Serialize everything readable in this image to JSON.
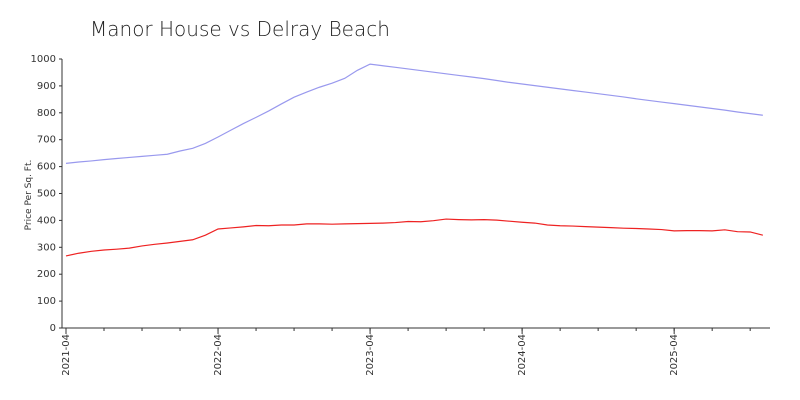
{
  "chart_data": {
    "type": "line",
    "title": "Manor House vs Delray Beach",
    "y_label": "Price Per Sq. Ft.",
    "x": [
      "2021-04",
      "2021-05",
      "2021-06",
      "2021-07",
      "2021-08",
      "2021-09",
      "2021-10",
      "2021-11",
      "2021-12",
      "2022-01",
      "2022-02",
      "2022-03",
      "2022-04",
      "2022-05",
      "2022-06",
      "2022-07",
      "2022-08",
      "2022-09",
      "2022-10",
      "2022-11",
      "2022-12",
      "2023-01",
      "2023-02",
      "2023-03",
      "2023-04",
      "2023-05",
      "2023-06",
      "2023-07",
      "2023-08",
      "2023-09",
      "2023-10",
      "2023-11",
      "2023-12",
      "2024-01",
      "2024-02",
      "2024-03",
      "2024-04",
      "2024-05",
      "2024-06",
      "2024-07",
      "2024-08",
      "2024-09",
      "2024-10",
      "2024-11",
      "2024-12",
      "2025-01",
      "2025-02",
      "2025-03",
      "2025-04",
      "2025-05",
      "2025-06",
      "2025-07",
      "2025-08",
      "2025-09",
      "2025-10",
      "2025-11"
    ],
    "series": [
      {
        "color": "#9999ee",
        "values": [
          612,
          617,
          621,
          626,
          630,
          634,
          638,
          642,
          646,
          658,
          668,
          686,
          710,
          735,
          760,
          783,
          807,
          833,
          858,
          877,
          895,
          910,
          928,
          958,
          981,
          975,
          969,
          963,
          957,
          951,
          945,
          939,
          933,
          927,
          920,
          913,
          907,
          901,
          895,
          889,
          883,
          877,
          871,
          865,
          859,
          852,
          846,
          840,
          834,
          828,
          822,
          816,
          810,
          803,
          797,
          791
        ]
      },
      {
        "color": "#ee2222",
        "values": [
          268,
          278,
          285,
          290,
          293,
          297,
          305,
          311,
          316,
          322,
          328,
          345,
          368,
          372,
          376,
          381,
          380,
          383,
          383,
          387,
          387,
          386,
          387,
          388,
          389,
          390,
          392,
          396,
          395,
          399,
          405,
          403,
          402,
          403,
          401,
          397,
          393,
          390,
          383,
          380,
          379,
          377,
          375,
          373,
          371,
          370,
          368,
          366,
          361,
          362,
          362,
          361,
          365,
          358,
          357,
          345
        ]
      }
    ],
    "xticks": [
      "2021-04",
      "2022-04",
      "2023-04",
      "2024-04",
      "2025-04"
    ],
    "ylim": [
      0,
      1000
    ],
    "yticks": [
      0,
      100,
      200,
      300,
      400,
      500,
      600,
      700,
      800,
      900,
      1000
    ]
  }
}
